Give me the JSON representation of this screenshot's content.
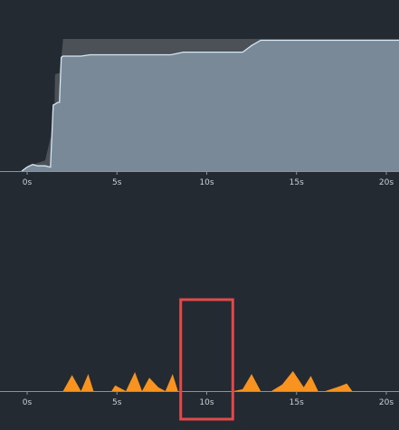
{
  "colors": {
    "background": "#232a31",
    "axis": "#8a939b",
    "area_fill": "#7a8997",
    "area_line": "#d6e6f2",
    "shadow_fill": "#4b5157",
    "activity_fill": "#f7931e",
    "selection": "#e04a4a"
  },
  "chart_data": [
    {
      "type": "area",
      "title": "",
      "xlabel": "",
      "ylabel": "",
      "xlim": [
        0,
        20
      ],
      "ylim": [
        0,
        100
      ],
      "x_ticks": [
        "0s",
        "5s",
        "10s",
        "15s",
        "20s"
      ],
      "grid": false,
      "series": [
        {
          "role": "main",
          "x": [
            -0.3,
            0.0,
            0.3,
            0.6,
            1.0,
            1.3,
            1.45,
            1.6,
            1.7,
            1.8,
            1.9,
            2.0,
            2.5,
            3.0,
            3.5,
            5.0,
            8.0,
            8.7,
            9.0,
            12.0,
            12.5,
            13.0,
            21.0
          ],
          "y": [
            0,
            3,
            5,
            4,
            4,
            3,
            50,
            51,
            52,
            52,
            86,
            87,
            87,
            87,
            88,
            88,
            88,
            90,
            90,
            90,
            95,
            99,
            99
          ]
        },
        {
          "role": "background",
          "x": [
            -0.3,
            0.3,
            1.0,
            1.3,
            1.5,
            1.55,
            1.7,
            1.8,
            1.9,
            2.0,
            21.0
          ],
          "y": [
            0,
            5,
            8,
            25,
            28,
            73,
            74,
            74,
            85,
            100,
            100
          ]
        }
      ]
    },
    {
      "type": "area",
      "title": "",
      "xlabel": "",
      "ylabel": "",
      "xlim": [
        0,
        20
      ],
      "ylim": [
        0,
        100
      ],
      "x_ticks": [
        "0s",
        "5s",
        "10s",
        "15s",
        "20s"
      ],
      "grid": false,
      "series": [
        {
          "role": "activity",
          "x": [
            2.0,
            2.5,
            3.0,
            3.4,
            3.7,
            4.0,
            4.7,
            4.9,
            5.5,
            6.0,
            6.4,
            6.8,
            7.3,
            7.7,
            8.1,
            8.4,
            8.7,
            11.5,
            12.0,
            12.5,
            13.0,
            13.6,
            14.2,
            14.8,
            15.4,
            15.8,
            16.2,
            16.6,
            17.4,
            17.8,
            18.1
          ],
          "y": [
            0,
            85,
            0,
            90,
            0,
            0,
            0,
            30,
            0,
            100,
            0,
            70,
            20,
            0,
            90,
            0,
            0,
            0,
            10,
            90,
            0,
            0,
            35,
            105,
            20,
            80,
            0,
            0,
            25,
            40,
            0
          ]
        }
      ],
      "highlight_range": [
        8.55,
        11.45
      ]
    }
  ]
}
